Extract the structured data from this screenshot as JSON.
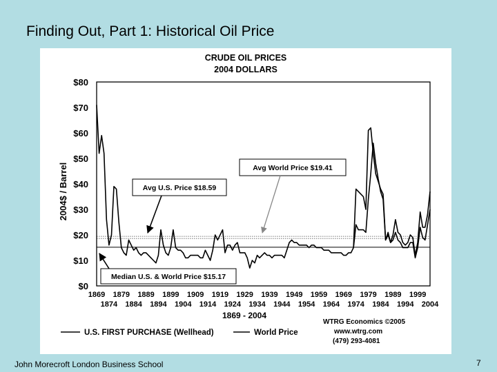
{
  "slide": {
    "title": "Finding Out, Part 1:  Historical Oil Price",
    "footer": "John Morecroft   London Business School",
    "page_number": "7"
  },
  "chart_data": {
    "type": "line",
    "title": "CRUDE OIL PRICES",
    "subtitle": "2004 DOLLARS",
    "ylabel": "2004$ / Barrel",
    "xlabel": "1869 - 2004",
    "ylim": [
      0,
      80
    ],
    "xlim": [
      1869,
      2004
    ],
    "y_ticks": [
      "$0",
      "$10",
      "$20",
      "$30",
      "$40",
      "$50",
      "$60",
      "$70",
      "$80"
    ],
    "x_ticks_upper": [
      "1869",
      "1879",
      "1889",
      "1899",
      "1909",
      "1919",
      "1929",
      "1939",
      "1949",
      "1959",
      "1969",
      "1979",
      "1989",
      "1999"
    ],
    "x_ticks_lower": [
      "1874",
      "1884",
      "1894",
      "1904",
      "1914",
      "1924",
      "1934",
      "1944",
      "1954",
      "1964",
      "1974",
      "1984",
      "1994",
      "2004"
    ],
    "grid": false,
    "reference_lines": [
      {
        "label": "Avg  World Price  $19.41",
        "value": 19.41,
        "style": "dotted"
      },
      {
        "label": "Avg  U.S. Price  $18.59",
        "value": 18.59,
        "style": "dotted"
      },
      {
        "label": "Median U.S. & World Price $15.17",
        "value": 15.17,
        "style": "solid"
      }
    ],
    "series": [
      {
        "name": "U.S. FIRST PURCHASE (Wellhead)",
        "x": [
          1869,
          1870,
          1871,
          1872,
          1873,
          1874,
          1875,
          1876,
          1877,
          1878,
          1879,
          1880,
          1881,
          1882,
          1883,
          1884,
          1885,
          1886,
          1887,
          1888,
          1889,
          1890,
          1891,
          1892,
          1893,
          1894,
          1895,
          1896,
          1897,
          1898,
          1899,
          1900,
          1901,
          1902,
          1903,
          1904,
          1905,
          1906,
          1907,
          1908,
          1909,
          1910,
          1911,
          1912,
          1913,
          1914,
          1915,
          1916,
          1917,
          1918,
          1919,
          1920,
          1921,
          1922,
          1923,
          1924,
          1925,
          1926,
          1927,
          1928,
          1929,
          1930,
          1931,
          1932,
          1933,
          1934,
          1935,
          1936,
          1937,
          1938,
          1939,
          1940,
          1941,
          1942,
          1943,
          1944,
          1945,
          1946,
          1947,
          1948,
          1949,
          1950,
          1951,
          1952,
          1953,
          1954,
          1955,
          1956,
          1957,
          1958,
          1959,
          1960,
          1961,
          1962,
          1963,
          1964,
          1965,
          1966,
          1967,
          1968,
          1969,
          1970,
          1971,
          1972,
          1973,
          1974,
          1975,
          1976,
          1977,
          1978,
          1979,
          1980,
          1981,
          1982,
          1983,
          1984,
          1985,
          1986,
          1987,
          1988,
          1989,
          1990,
          1991,
          1992,
          1993,
          1994,
          1995,
          1996,
          1997,
          1998,
          1999,
          2000,
          2001,
          2002,
          2003,
          2004
        ],
        "values": [
          71,
          52,
          59,
          52,
          26,
          16,
          20,
          39,
          38,
          25,
          15,
          13,
          12,
          18,
          16,
          14,
          15,
          13,
          12,
          13,
          13,
          12,
          11,
          10,
          9,
          12,
          22,
          16,
          13,
          12,
          15,
          22,
          15,
          14,
          14,
          13,
          11,
          11,
          12,
          12,
          12,
          12,
          11,
          11,
          14,
          12,
          10,
          14,
          20,
          18,
          20,
          22,
          13,
          16,
          16,
          14,
          16,
          17,
          13,
          13,
          13,
          11,
          7,
          10,
          9,
          12,
          11,
          12,
          13,
          12,
          12,
          11,
          12,
          12,
          12,
          12,
          11,
          14,
          17,
          18,
          17,
          17,
          16,
          16,
          16,
          16,
          15,
          16,
          16,
          15,
          15,
          15,
          14,
          14,
          14,
          13,
          13,
          13,
          13,
          13,
          12,
          12,
          13,
          13,
          15,
          24,
          22,
          22,
          22,
          21,
          34,
          44,
          56,
          48,
          42,
          37,
          34,
          18,
          20,
          17,
          18,
          21,
          18,
          17,
          15,
          15,
          15,
          17,
          17,
          11,
          15,
          23,
          19,
          18,
          24,
          30
        ]
      },
      {
        "name": "World Price",
        "x": [
          1973,
          1974,
          1975,
          1976,
          1977,
          1978,
          1979,
          1980,
          1981,
          1982,
          1983,
          1984,
          1985,
          1986,
          1987,
          1988,
          1989,
          1990,
          1991,
          1992,
          1993,
          1994,
          1995,
          1996,
          1997,
          1998,
          1999,
          2000,
          2001,
          2002,
          2003,
          2004
        ],
        "values": [
          15,
          38,
          37,
          36,
          35,
          30,
          61,
          62,
          52,
          44,
          41,
          38,
          36,
          18,
          21,
          17,
          20,
          26,
          21,
          20,
          17,
          16,
          17,
          20,
          19,
          12,
          17,
          29,
          23,
          23,
          28,
          37
        ]
      }
    ],
    "legend": [
      "U.S. FIRST PURCHASE (Wellhead)",
      "World Price"
    ],
    "credit": [
      "WTRG Economics  ©2005",
      "www.wtrg.com",
      "(479) 293-4081"
    ]
  }
}
